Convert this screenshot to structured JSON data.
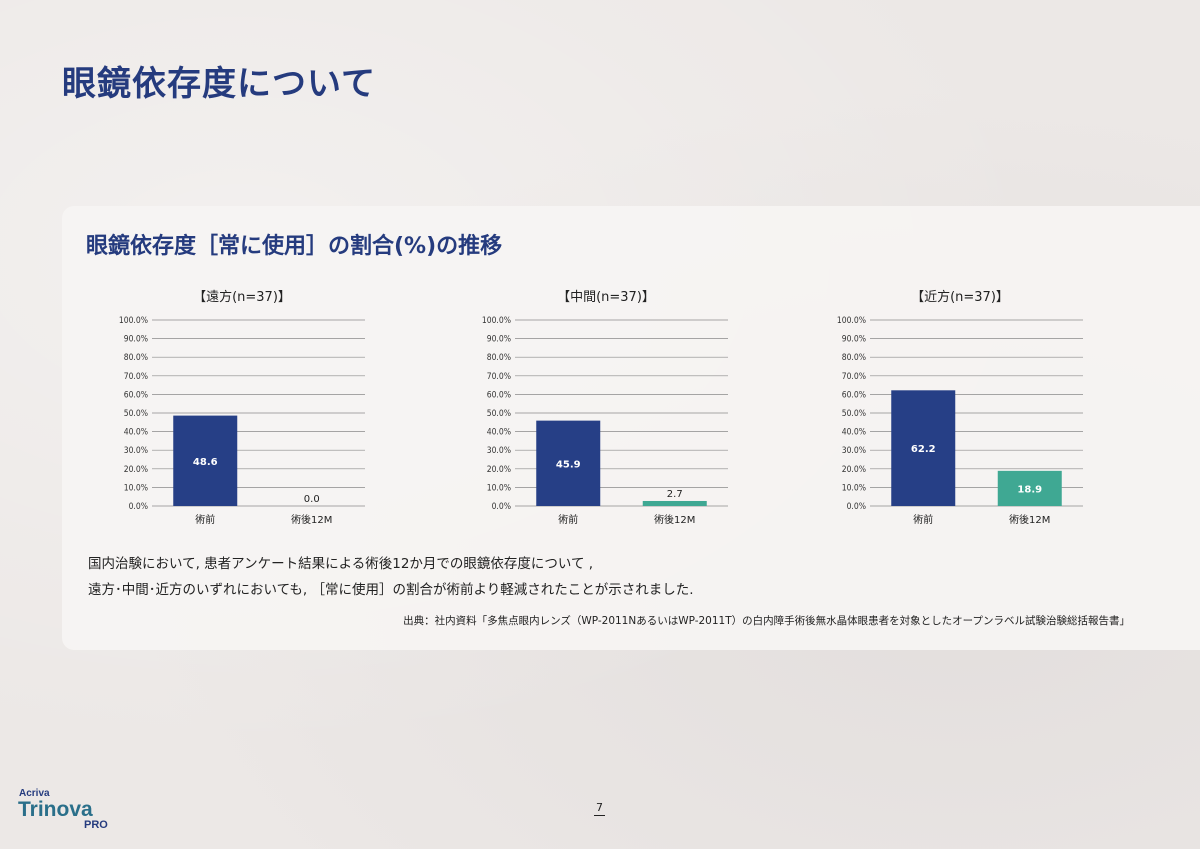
{
  "page": {
    "title": "眼鏡依存度について",
    "page_number": "7"
  },
  "panel": {
    "title": "眼鏡依存度［常に使用］の割合(%)の推移",
    "body_lines": [
      "国内治験において, 患者アンケート結果による術後12か月での眼鏡依存度について ,",
      "遠方･中間･近方のいずれにおいても, ［常に使用］の割合が術前より軽減されたことが示されました."
    ],
    "source": "出典：社内資料「多焦点眼内レンズ（WP-2011NあるいはWP-2011T）の白内障手術後無水晶体眼患者を対象としたオープンラベル試験治験総括報告書」"
  },
  "logo": {
    "brand_top": "Acriva",
    "brand_main": "Trinova",
    "brand_sub": "PRO"
  },
  "colors": {
    "title": "#253b7e",
    "bar_pre": "#263f86",
    "bar_post": "#3fa893",
    "grid": "#8a8a8a"
  },
  "chart_data": [
    {
      "type": "bar",
      "title": "【遠方(n=37)】",
      "categories": [
        "術前",
        "術後12M"
      ],
      "values": [
        48.6,
        0.0
      ],
      "value_labels": [
        "48.6",
        "0.0"
      ],
      "ylim": [
        0,
        100
      ],
      "yticks": [
        "0.0%",
        "10.0%",
        "20.0%",
        "30.0%",
        "40.0%",
        "50.0%",
        "60.0%",
        "70.0%",
        "80.0%",
        "90.0%",
        "100.0%"
      ],
      "grid": true
    },
    {
      "type": "bar",
      "title": "【中間(n=37)】",
      "categories": [
        "術前",
        "術後12M"
      ],
      "values": [
        45.9,
        2.7
      ],
      "value_labels": [
        "45.9",
        "2.7"
      ],
      "ylim": [
        0,
        100
      ],
      "yticks": [
        "0.0%",
        "10.0%",
        "20.0%",
        "30.0%",
        "40.0%",
        "50.0%",
        "60.0%",
        "70.0%",
        "80.0%",
        "90.0%",
        "100.0%"
      ],
      "grid": true
    },
    {
      "type": "bar",
      "title": "【近方(n=37)】",
      "categories": [
        "術前",
        "術後12M"
      ],
      "values": [
        62.2,
        18.9
      ],
      "value_labels": [
        "62.2",
        "18.9"
      ],
      "ylim": [
        0,
        100
      ],
      "yticks": [
        "0.0%",
        "10.0%",
        "20.0%",
        "30.0%",
        "40.0%",
        "50.0%",
        "60.0%",
        "70.0%",
        "80.0%",
        "90.0%",
        "100.0%"
      ],
      "grid": true
    }
  ]
}
